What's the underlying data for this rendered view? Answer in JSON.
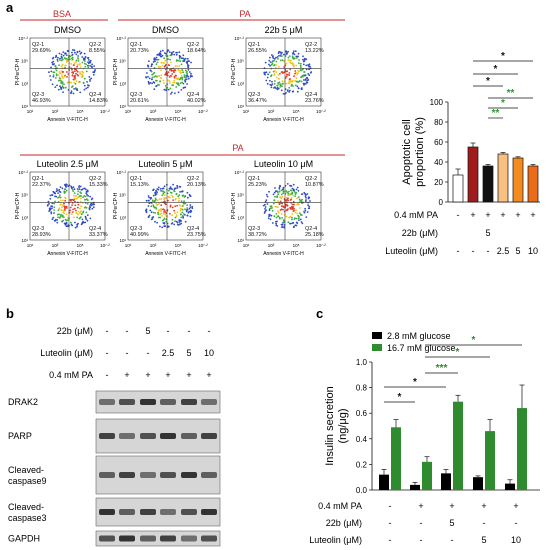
{
  "panel_a": {
    "letter": "a",
    "group_bsa": "BSA",
    "group_pa_top": "PA",
    "group_pa_bottom": "PA",
    "plots": [
      {
        "title": "DMSO",
        "q1": "Q2-1\n29.69%",
        "q2": "Q2-2\n8.55%",
        "q3": "Q2-3\n46.93%",
        "q4": "Q2-4\n14.83%"
      },
      {
        "title": "DMSO",
        "q1": "Q2-1\n20.73%",
        "q2": "Q2-2\n18.64%",
        "q3": "Q2-3\n20.61%",
        "q4": "Q2-4\n40.02%"
      },
      {
        "title": "22b 5 μM",
        "q1": "Q2-1\n26.55%",
        "q2": "Q2-2\n13.22%",
        "q3": "Q2-3\n36.47%",
        "q4": "Q2-4\n23.76%"
      },
      {
        "title": "Luteolin 2.5 μM",
        "q1": "Q2-1\n22.37%",
        "q2": "Q2-2\n15.33%",
        "q3": "Q2-3\n28.93%",
        "q4": "Q2-4\n33.37%"
      },
      {
        "title": "Luteolin 5 μM",
        "q1": "Q2-1\n15.13%",
        "q2": "Q2-2\n20.13%",
        "q3": "Q2-3\n40.99%",
        "q4": "Q2-4\n23.75%"
      },
      {
        "title": "Luteolin 10 μM",
        "q1": "Q2-1\n25.23%",
        "q2": "Q2-2\n10.87%",
        "q3": "Q2-3\n38.72%",
        "q4": "Q2-4\n25.18%"
      }
    ],
    "flow_xlabel": "Annexin V-FITC-H",
    "flow_ylabel": "PI-PerCP-H",
    "flow_xticks": [
      "10¹",
      "10³",
      "10⁵",
      "10⁷·²"
    ],
    "flow_yticks": [
      "10¹",
      "10³",
      "10⁵",
      "10⁷·²"
    ]
  },
  "chart_data": [
    {
      "type": "bar",
      "ylabel": "Apoptotic cell proportion (%)",
      "ylim": [
        0,
        100
      ],
      "yticks": [
        "0",
        "20",
        "40",
        "60",
        "80",
        "100"
      ],
      "values": [
        27,
        55,
        36,
        48,
        44,
        36
      ],
      "errors": [
        6,
        4,
        1.5,
        1.5,
        1.2,
        1.5
      ],
      "colors": [
        "#ffffff",
        "#a01c1c",
        "#111111",
        "#f9c07f",
        "#f58a1f",
        "#ea6b18"
      ],
      "table_rows": [
        {
          "label": "0.4 mM PA",
          "cells": [
            "-",
            "+",
            "+",
            "+",
            "+",
            "+"
          ]
        },
        {
          "label": "22b (μM)",
          "cells": [
            "",
            "",
            "5",
            "",
            "",
            ""
          ]
        },
        {
          "label": "Luteolin (μM)",
          "cells": [
            "-",
            "-",
            "-",
            "2.5",
            "5",
            "10"
          ]
        }
      ],
      "sig_marks": [
        {
          "text": "*",
          "color": "#111111"
        },
        {
          "text": "*",
          "color": "#111111"
        },
        {
          "text": "*",
          "color": "#111111"
        },
        {
          "text": "**",
          "color": "#2e9a2e"
        },
        {
          "text": "*",
          "color": "#2e9a2e"
        },
        {
          "text": "**",
          "color": "#2e9a2e"
        }
      ]
    },
    {
      "type": "bar",
      "ylabel": "Insulin secretion (ng/μg)",
      "ylim": [
        0,
        1.0
      ],
      "yticks": [
        "0.0",
        "0.2",
        "0.4",
        "0.6",
        "0.8",
        "1.0"
      ],
      "series": [
        {
          "name": "2.8 mM glucose",
          "color": "#000000",
          "values": [
            0.12,
            0.04,
            0.13,
            0.1,
            0.05
          ],
          "errors": [
            0.04,
            0.02,
            0.03,
            0.01,
            0.03
          ]
        },
        {
          "name": "16.7 mM glucose",
          "color": "#2e8b2e",
          "values": [
            0.49,
            0.22,
            0.69,
            0.46,
            0.64
          ],
          "errors": [
            0.06,
            0.04,
            0.05,
            0.09,
            0.18
          ]
        }
      ],
      "table_rows": [
        {
          "label": "0.4 mM PA",
          "cells": [
            "-",
            "+",
            "+",
            "+",
            "+"
          ]
        },
        {
          "label": "22b (μM)",
          "cells": [
            "-",
            "-",
            "5",
            "-",
            "-"
          ]
        },
        {
          "label": "Luteolin (μM)",
          "cells": [
            "-",
            "-",
            "-",
            "5",
            "10"
          ]
        }
      ],
      "sig_marks": [
        {
          "text": "*",
          "color": "#111111"
        },
        {
          "text": "*",
          "color": "#111111"
        },
        {
          "text": "***",
          "color": "#2e8b2e"
        },
        {
          "text": "*",
          "color": "#2e8b2e"
        },
        {
          "text": "*",
          "color": "#2e8b2e"
        }
      ]
    }
  ],
  "panel_b": {
    "letter": "b",
    "rows": [
      {
        "label": "22b (μM)",
        "cells": [
          "-",
          "-",
          "5",
          "-",
          "-",
          "-"
        ]
      },
      {
        "label": "Luteolin (μM)",
        "cells": [
          "-",
          "-",
          "-",
          "2.5",
          "5",
          "10"
        ]
      },
      {
        "label": "0.4 mM PA",
        "cells": [
          "-",
          "+",
          "+",
          "+",
          "+",
          "+"
        ]
      }
    ],
    "blots": [
      "DRAK2",
      "PARP",
      "Cleaved-\ncaspase9",
      "Cleaved-\ncaspase3",
      "GAPDH"
    ]
  },
  "panel_c": {
    "letter": "c"
  }
}
